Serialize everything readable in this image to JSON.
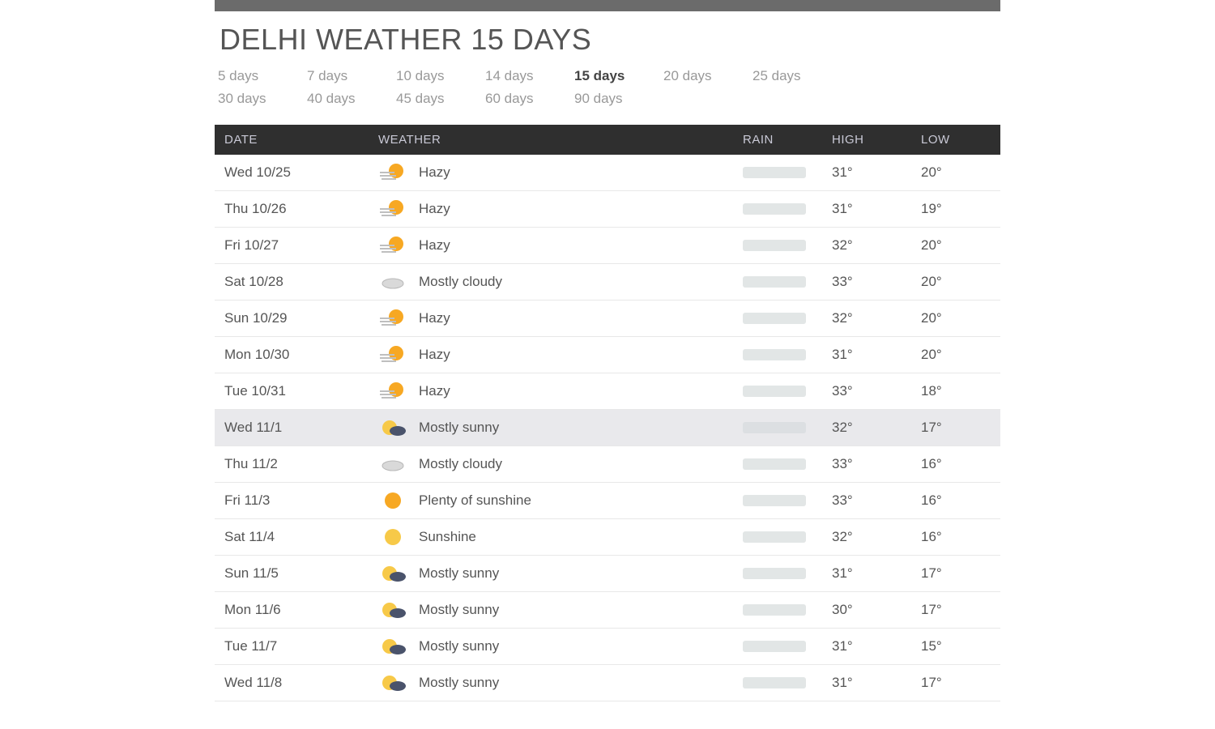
{
  "title": "DELHI WEATHER 15 DAYS",
  "range_tabs": {
    "items": [
      {
        "label": "5 days",
        "active": false
      },
      {
        "label": "7 days",
        "active": false
      },
      {
        "label": "10 days",
        "active": false
      },
      {
        "label": "14 days",
        "active": false
      },
      {
        "label": "15 days",
        "active": true
      },
      {
        "label": "20 days",
        "active": false
      },
      {
        "label": "25 days",
        "active": false
      },
      {
        "label": "30 days",
        "active": false
      },
      {
        "label": "40 days",
        "active": false
      },
      {
        "label": "45 days",
        "active": false
      },
      {
        "label": "60 days",
        "active": false
      },
      {
        "label": "90 days",
        "active": false
      }
    ]
  },
  "table": {
    "headers": {
      "date": "DATE",
      "weather": "WEATHER",
      "rain": "RAIN",
      "high": "HIGH",
      "low": "LOW"
    },
    "rows": [
      {
        "date": "Wed 10/25",
        "condition": "Hazy",
        "icon": "hazy",
        "high": "31°",
        "low": "20°",
        "highlight": false
      },
      {
        "date": "Thu 10/26",
        "condition": "Hazy",
        "icon": "hazy",
        "high": "31°",
        "low": "19°",
        "highlight": false
      },
      {
        "date": "Fri 10/27",
        "condition": "Hazy",
        "icon": "hazy",
        "high": "32°",
        "low": "20°",
        "highlight": false
      },
      {
        "date": "Sat 10/28",
        "condition": "Mostly cloudy",
        "icon": "mostly-cloudy",
        "high": "33°",
        "low": "20°",
        "highlight": false
      },
      {
        "date": "Sun 10/29",
        "condition": "Hazy",
        "icon": "hazy",
        "high": "32°",
        "low": "20°",
        "highlight": false
      },
      {
        "date": "Mon 10/30",
        "condition": "Hazy",
        "icon": "hazy",
        "high": "31°",
        "low": "20°",
        "highlight": false
      },
      {
        "date": "Tue 10/31",
        "condition": "Hazy",
        "icon": "hazy",
        "high": "33°",
        "low": "18°",
        "highlight": false
      },
      {
        "date": "Wed 11/1",
        "condition": "Mostly sunny",
        "icon": "mostly-sunny",
        "high": "32°",
        "low": "17°",
        "highlight": true
      },
      {
        "date": "Thu 11/2",
        "condition": "Mostly cloudy",
        "icon": "mostly-cloudy",
        "high": "33°",
        "low": "16°",
        "highlight": false
      },
      {
        "date": "Fri 11/3",
        "condition": "Plenty of sunshine",
        "icon": "plenty-sunshine",
        "high": "33°",
        "low": "16°",
        "highlight": false
      },
      {
        "date": "Sat 11/4",
        "condition": "Sunshine",
        "icon": "sunshine",
        "high": "32°",
        "low": "16°",
        "highlight": false
      },
      {
        "date": "Sun 11/5",
        "condition": "Mostly sunny",
        "icon": "mostly-sunny",
        "high": "31°",
        "low": "17°",
        "highlight": false
      },
      {
        "date": "Mon 11/6",
        "condition": "Mostly sunny",
        "icon": "mostly-sunny",
        "high": "30°",
        "low": "17°",
        "highlight": false
      },
      {
        "date": "Tue 11/7",
        "condition": "Mostly sunny",
        "icon": "mostly-sunny",
        "high": "31°",
        "low": "15°",
        "highlight": false
      },
      {
        "date": "Wed 11/8",
        "condition": "Mostly sunny",
        "icon": "mostly-sunny",
        "high": "31°",
        "low": "17°",
        "highlight": false
      }
    ]
  },
  "styling": {
    "header_bg": "#2f2f2f",
    "header_text": "#c9c9d6",
    "row_border": "#e8e8e8",
    "highlight_bg": "#e9e9ec",
    "rain_bar_bg": "#e2e6e6",
    "title_color": "#555",
    "tab_color": "#999",
    "tab_active_color": "#444",
    "topbar_bg": "#6b6b6b"
  }
}
